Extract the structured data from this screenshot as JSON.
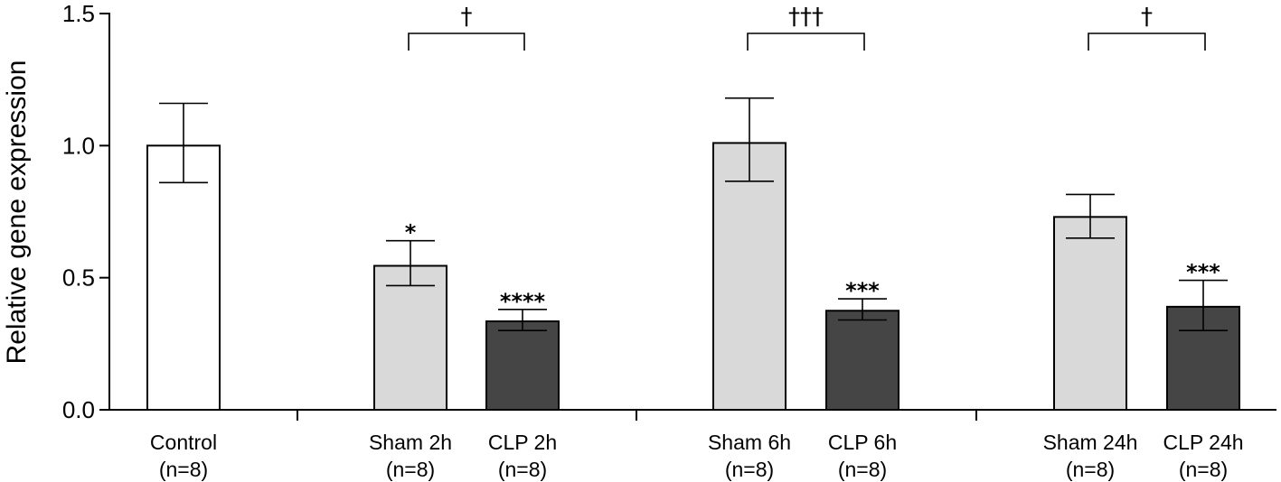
{
  "chart_data": {
    "type": "bar",
    "ylabel": "Relative gene expression",
    "ylim": [
      0,
      1.5
    ],
    "yticks": [
      "0.0",
      "0.5",
      "1.0",
      "1.5"
    ],
    "categories": [
      {
        "name": "Control",
        "n": "(n=8)",
        "value": 1.0,
        "err_low": 0.86,
        "err_high": 1.16,
        "color": "#ffffff",
        "sig": ""
      },
      {
        "name": "Sham 2h",
        "n": "(n=8)",
        "value": 0.545,
        "err_low": 0.47,
        "err_high": 0.64,
        "color": "#d9d9d9",
        "sig": "*"
      },
      {
        "name": "CLP 2h",
        "n": "(n=8)",
        "value": 0.335,
        "err_low": 0.3,
        "err_high": 0.38,
        "color": "#454545",
        "sig": "****"
      },
      {
        "name": "Sham 6h",
        "n": "(n=8)",
        "value": 1.01,
        "err_low": 0.865,
        "err_high": 1.18,
        "color": "#d9d9d9",
        "sig": ""
      },
      {
        "name": "CLP 6h",
        "n": "(n=8)",
        "value": 0.375,
        "err_low": 0.34,
        "err_high": 0.42,
        "color": "#454545",
        "sig": "***"
      },
      {
        "name": "Sham 24h",
        "n": "(n=8)",
        "value": 0.73,
        "err_low": 0.65,
        "err_high": 0.815,
        "color": "#d9d9d9",
        "sig": ""
      },
      {
        "name": "CLP 24h",
        "n": "(n=8)",
        "value": 0.39,
        "err_low": 0.3,
        "err_high": 0.49,
        "color": "#454545",
        "sig": "***"
      }
    ],
    "brackets": [
      {
        "from": 1,
        "to": 2,
        "label": "†"
      },
      {
        "from": 3,
        "to": 4,
        "label": "†††"
      },
      {
        "from": 5,
        "to": 6,
        "label": "†"
      }
    ],
    "grid": false,
    "legend": "none"
  }
}
